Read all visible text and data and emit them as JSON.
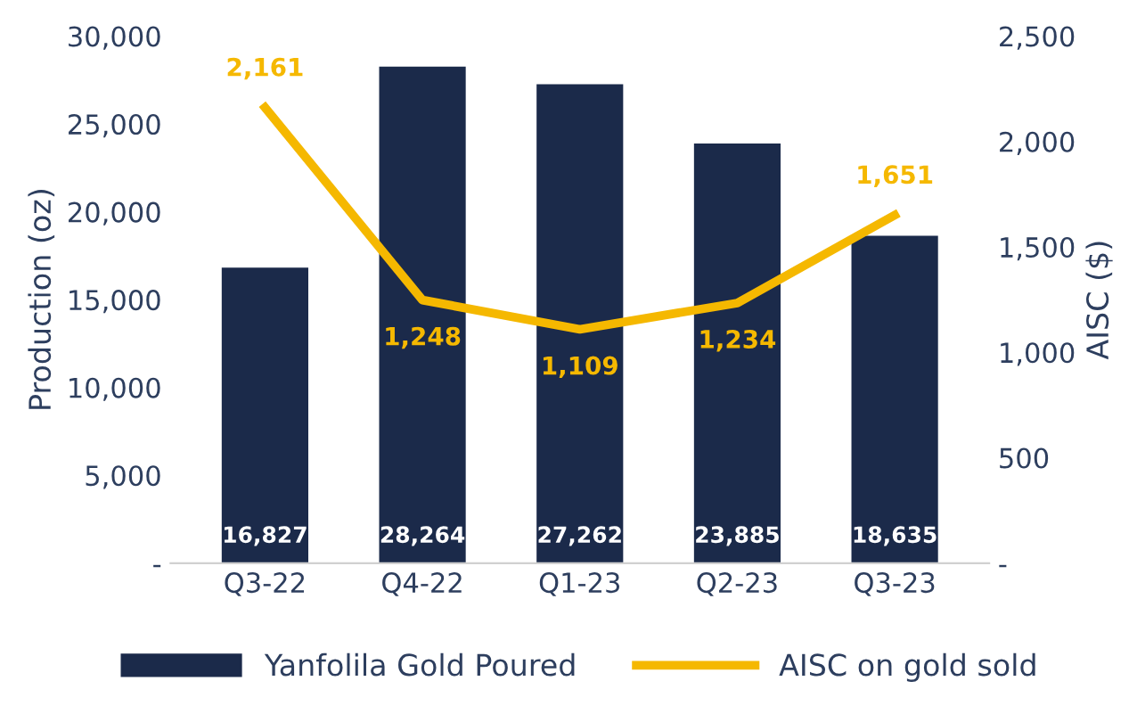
{
  "chart_data": {
    "type": "bar",
    "ylabel": "Production (oz)",
    "y2label": "AISC ($)",
    "categories": [
      "Q3-22",
      "Q4-22",
      "Q1-23",
      "Q2-23",
      "Q3-23"
    ],
    "series": [
      {
        "name": "Yanfolila Gold Poured",
        "color": "#1b2a4a",
        "values": [
          16827,
          28264,
          27262,
          23885,
          18635
        ],
        "value_labels": [
          "16,827",
          "28,264",
          "27,262",
          "23,885",
          "18,635"
        ]
      },
      {
        "name": "AISC on gold sold",
        "type": "line",
        "axis": "y2",
        "color": "#f5b800",
        "values": [
          2161,
          1248,
          1109,
          1234,
          1651
        ],
        "value_labels": [
          "2,161",
          "1,248",
          "1,109",
          "1,234",
          "1,651"
        ]
      }
    ],
    "ylim": [
      0,
      30000
    ],
    "yticks": [
      {
        "value": 0,
        "label": "-"
      },
      {
        "value": 5000,
        "label": "5,000"
      },
      {
        "value": 10000,
        "label": "10,000"
      },
      {
        "value": 15000,
        "label": "15,000"
      },
      {
        "value": 20000,
        "label": "20,000"
      },
      {
        "value": 25000,
        "label": "25,000"
      },
      {
        "value": 30000,
        "label": "30,000"
      }
    ],
    "y2lim": [
      0,
      2500
    ],
    "y2ticks": [
      {
        "value": 0,
        "label": "-"
      },
      500,
      {
        "value": 1000,
        "label": "1,000"
      },
      {
        "value": 1500,
        "label": "1,500"
      },
      {
        "value": 2000,
        "label": "2,000"
      },
      {
        "value": 2500,
        "label": "2,500"
      }
    ],
    "grid": false,
    "legend": "bottom",
    "marker": "none",
    "line_style": "solid"
  }
}
